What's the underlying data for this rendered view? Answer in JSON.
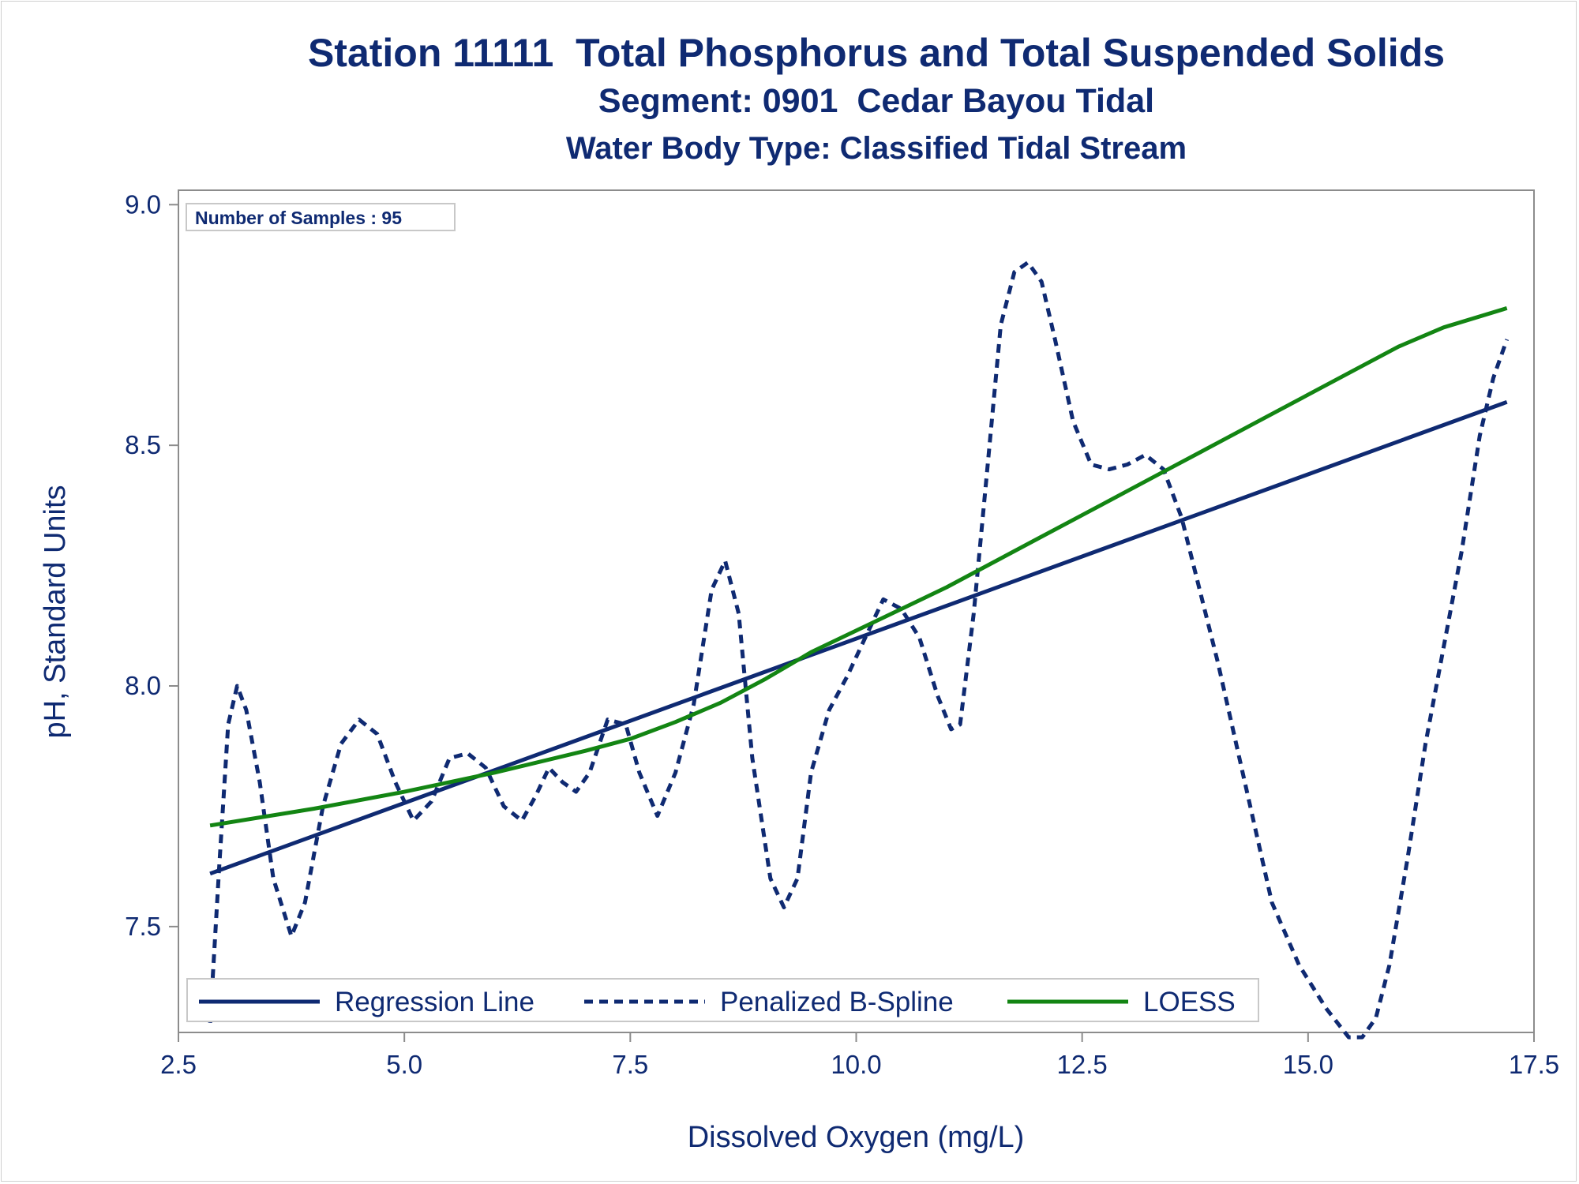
{
  "title": "Station 11111  Total Phosphorus and Total Suspended Solids",
  "subtitle": "Segment: 0901  Cedar Bayou Tidal",
  "subtitle2": "Water Body Type: Classified Tidal Stream",
  "inset_text": "Number of Samples : 95",
  "colors": {
    "text": "#0f2a72",
    "regression": "#0f2a72",
    "spline": "#0f2a72",
    "loess": "#138513",
    "axis": "#8c8c8c"
  },
  "chart_data": {
    "type": "line",
    "xlabel": "Dissolved Oxygen (mg/L)",
    "ylabel": "pH, Standard Units",
    "xlim": [
      2.5,
      17.5
    ],
    "ylim": [
      7.28,
      9.03
    ],
    "xticks": [
      2.5,
      5.0,
      7.5,
      10.0,
      12.5,
      15.0,
      17.5
    ],
    "xtick_labels": [
      "2.5",
      "5.0",
      "7.5",
      "10.0",
      "12.5",
      "15.0",
      "17.5"
    ],
    "yticks": [
      7.5,
      8.0,
      8.5,
      9.0
    ],
    "ytick_labels": [
      "7.5",
      "8.0",
      "8.5",
      "9.0"
    ],
    "legend_position": "bottom-inside",
    "series": [
      {
        "name": "Regression Line",
        "style": "solid",
        "x": [
          2.85,
          17.2
        ],
        "y": [
          7.61,
          8.59
        ]
      },
      {
        "name": "Penalized B-Spline",
        "style": "dashed",
        "x": [
          2.85,
          2.95,
          3.05,
          3.15,
          3.25,
          3.4,
          3.55,
          3.75,
          3.9,
          4.1,
          4.3,
          4.5,
          4.7,
          4.9,
          5.1,
          5.3,
          5.5,
          5.7,
          5.9,
          6.1,
          6.3,
          6.45,
          6.6,
          6.75,
          6.9,
          7.05,
          7.25,
          7.45,
          7.6,
          7.8,
          8.0,
          8.2,
          8.4,
          8.55,
          8.7,
          8.85,
          9.05,
          9.2,
          9.35,
          9.5,
          9.7,
          9.9,
          10.1,
          10.3,
          10.5,
          10.7,
          10.9,
          11.05,
          11.15,
          11.3,
          11.45,
          11.6,
          11.75,
          11.9,
          12.05,
          12.2,
          12.4,
          12.6,
          12.8,
          13.0,
          13.2,
          13.4,
          13.6,
          13.8,
          14.0,
          14.3,
          14.6,
          14.9,
          15.2,
          15.45,
          15.6,
          15.75,
          15.9,
          16.1,
          16.3,
          16.5,
          16.7,
          16.9,
          17.05,
          17.2
        ],
        "y": [
          7.3,
          7.62,
          7.92,
          8.0,
          7.95,
          7.8,
          7.6,
          7.48,
          7.55,
          7.75,
          7.88,
          7.93,
          7.9,
          7.8,
          7.72,
          7.76,
          7.85,
          7.86,
          7.83,
          7.75,
          7.72,
          7.77,
          7.83,
          7.8,
          7.78,
          7.82,
          7.93,
          7.92,
          7.82,
          7.73,
          7.82,
          7.96,
          8.2,
          8.26,
          8.15,
          7.85,
          7.6,
          7.54,
          7.6,
          7.82,
          7.95,
          8.02,
          8.1,
          8.18,
          8.16,
          8.1,
          7.98,
          7.91,
          7.92,
          8.15,
          8.45,
          8.75,
          8.86,
          8.88,
          8.84,
          8.72,
          8.55,
          8.46,
          8.45,
          8.46,
          8.48,
          8.45,
          8.35,
          8.2,
          8.05,
          7.8,
          7.55,
          7.42,
          7.33,
          7.27,
          7.27,
          7.31,
          7.42,
          7.64,
          7.88,
          8.08,
          8.28,
          8.52,
          8.64,
          8.72
        ]
      },
      {
        "name": "LOESS",
        "style": "solid",
        "x": [
          2.85,
          4.0,
          5.0,
          6.0,
          7.0,
          7.5,
          8.0,
          8.5,
          9.0,
          9.5,
          10.0,
          10.5,
          11.0,
          11.5,
          12.0,
          12.5,
          13.0,
          13.5,
          14.0,
          14.5,
          15.0,
          15.5,
          16.0,
          16.5,
          17.2
        ],
        "y": [
          7.71,
          7.745,
          7.78,
          7.82,
          7.865,
          7.89,
          7.925,
          7.965,
          8.015,
          8.07,
          8.115,
          8.16,
          8.205,
          8.255,
          8.305,
          8.355,
          8.405,
          8.455,
          8.505,
          8.555,
          8.605,
          8.655,
          8.705,
          8.745,
          8.785
        ]
      }
    ]
  }
}
